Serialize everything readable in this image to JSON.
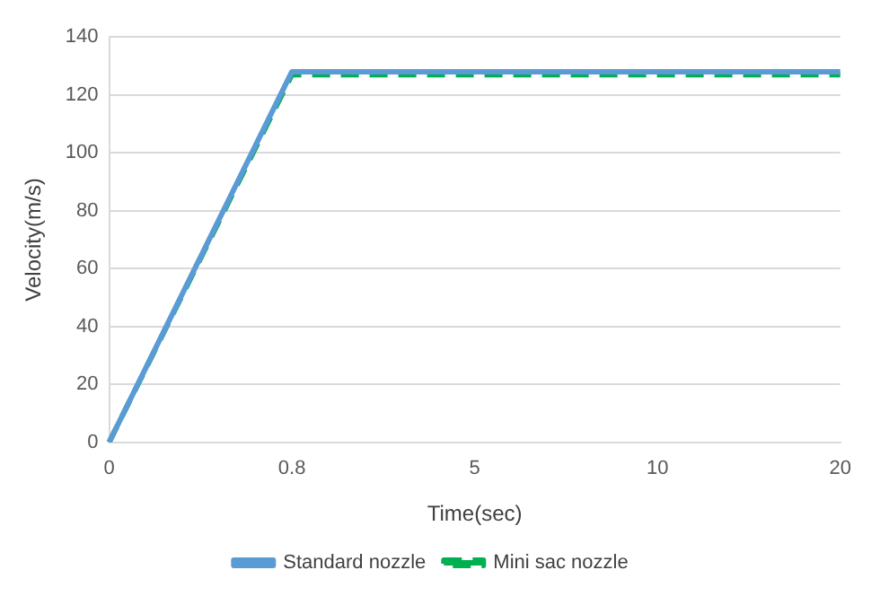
{
  "chart_data": {
    "type": "line",
    "xlabel": "Time(sec)",
    "ylabel": "Velocity(m/s)",
    "categories": [
      "0",
      "0.8",
      "5",
      "10",
      "20"
    ],
    "series": [
      {
        "name": "Standard nozzle",
        "color": "#5b9bd5",
        "values": [
          0,
          128,
          128,
          128,
          128
        ],
        "line_style": "solid"
      },
      {
        "name": "Mini sac nozzle",
        "color": "#00b050",
        "values": [
          0,
          127,
          127,
          127,
          127
        ],
        "line_style": "dashed"
      }
    ],
    "ylim": [
      0,
      140
    ],
    "yticks": [
      0,
      20,
      40,
      60,
      80,
      100,
      120,
      140
    ],
    "grid": "y",
    "legend": "bottom",
    "marker": "none"
  }
}
